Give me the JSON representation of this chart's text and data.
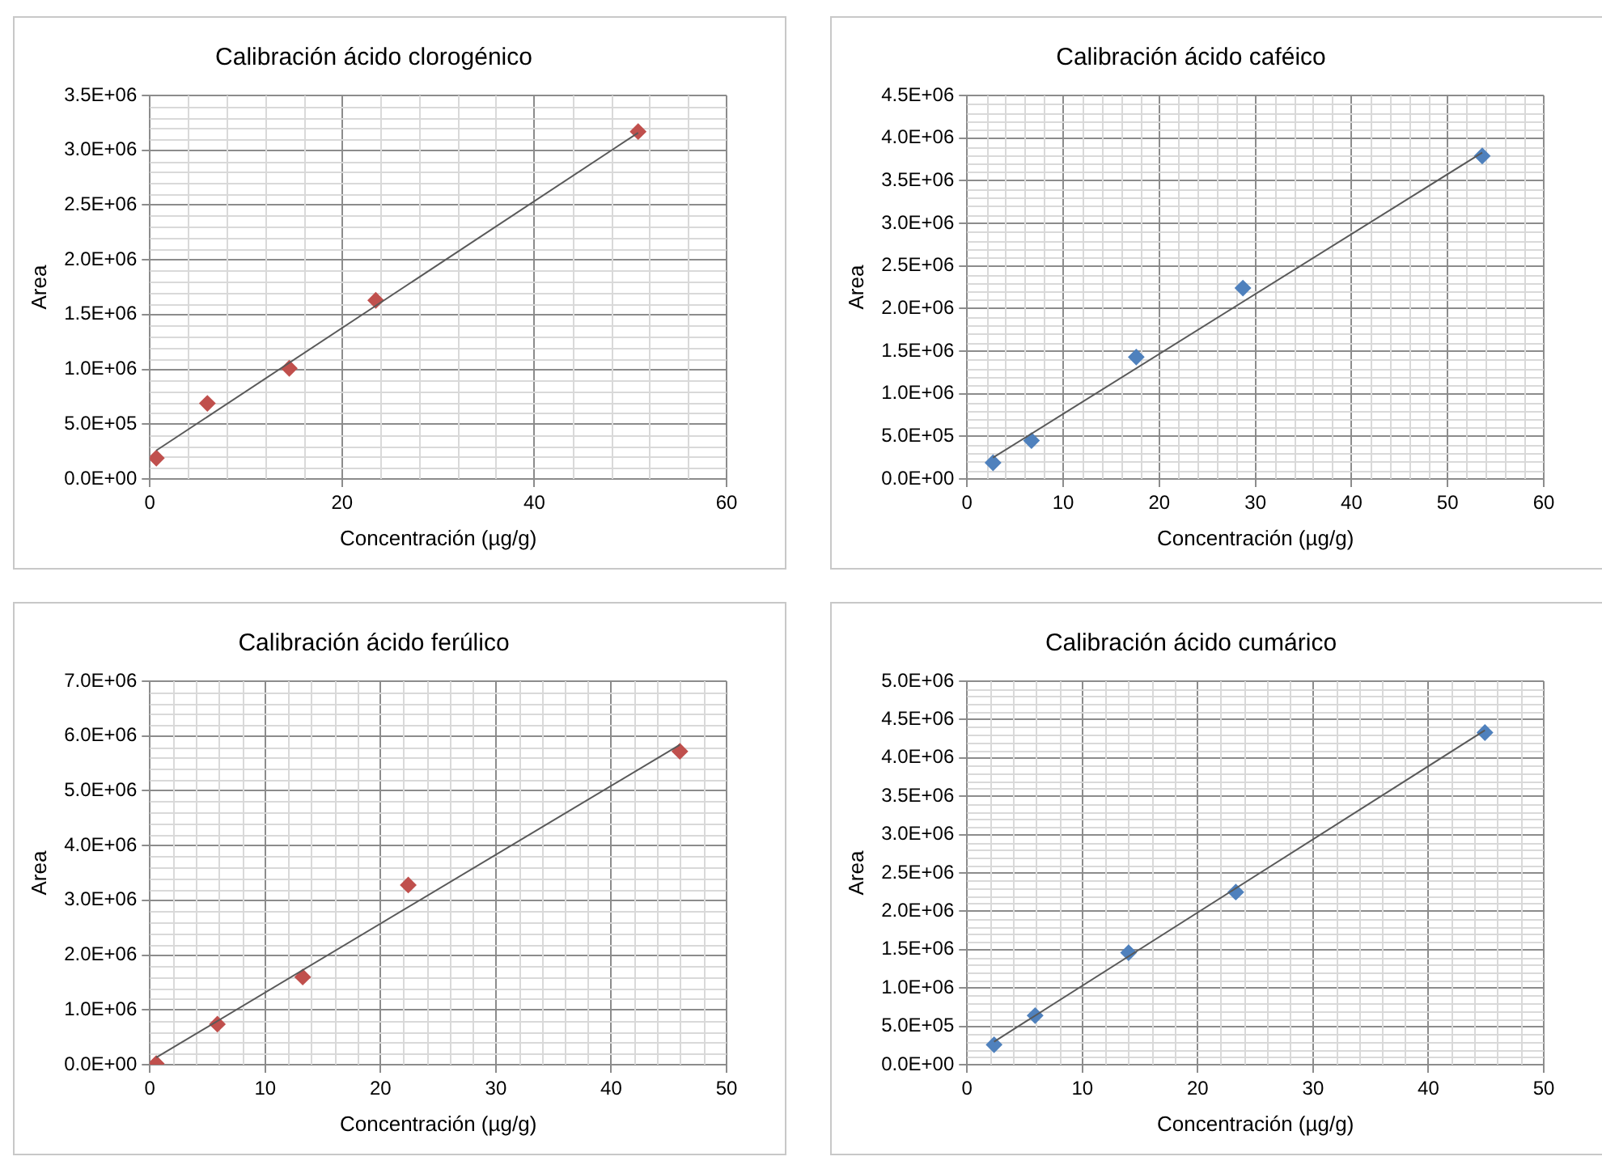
{
  "chart_data": [
    {
      "type": "scatter",
      "title": "Calibración ácido clorogénico",
      "xlabel": "Concentración (µg/g)",
      "ylabel": "Area",
      "marker": "diamond",
      "grid": true,
      "legend": false,
      "xlim": [
        0,
        60
      ],
      "xticks": [
        0,
        20,
        40,
        60
      ],
      "ylim": [
        0,
        3500000
      ],
      "yticks": [
        {
          "value": 0,
          "label": "0.0E+00"
        },
        {
          "value": 500000,
          "label": "5.0E+05"
        },
        {
          "value": 1000000,
          "label": "1.0E+06"
        },
        {
          "value": 1500000,
          "label": "1.5E+06"
        },
        {
          "value": 2000000,
          "label": "2.0E+06"
        },
        {
          "value": 2500000,
          "label": "2.5E+06"
        },
        {
          "value": 3000000,
          "label": "3.0E+06"
        },
        {
          "value": 3500000,
          "label": "3.5E+06"
        }
      ],
      "series": [
        {
          "type": "scatter",
          "color": "#c0504d",
          "x": [
            0.67,
            5.98,
            14.5,
            23.5,
            50.8
          ],
          "values": [
            190000,
            690000,
            1010000,
            1630000,
            3170000
          ]
        },
        {
          "type": "line",
          "color": "#595959",
          "marker": "none",
          "x": [
            0.67,
            50.8
          ],
          "values": [
            260000,
            3160000
          ]
        }
      ]
    },
    {
      "type": "scatter",
      "title": "Calibración ácido caféico",
      "xlabel": "Concentración (µg/g)",
      "ylabel": "Area",
      "marker": "diamond",
      "grid": true,
      "legend": false,
      "xlim": [
        0,
        60
      ],
      "xticks": [
        0,
        10,
        20,
        30,
        40,
        50,
        60
      ],
      "ylim": [
        0,
        4500000
      ],
      "yticks": [
        {
          "value": 0,
          "label": "0.0E+00"
        },
        {
          "value": 500000,
          "label": "5.0E+05"
        },
        {
          "value": 1000000,
          "label": "1.0E+06"
        },
        {
          "value": 1500000,
          "label": "1.5E+06"
        },
        {
          "value": 2000000,
          "label": "2.0E+06"
        },
        {
          "value": 2500000,
          "label": "2.5E+06"
        },
        {
          "value": 3000000,
          "label": "3.0E+06"
        },
        {
          "value": 3500000,
          "label": "3.5E+06"
        },
        {
          "value": 4000000,
          "label": "4.0E+06"
        },
        {
          "value": 4500000,
          "label": "4.5E+06"
        }
      ],
      "series": [
        {
          "type": "scatter",
          "color": "#4f81bd",
          "x": [
            2.7,
            6.7,
            17.6,
            28.7,
            53.6
          ],
          "values": [
            190000,
            450000,
            1430000,
            2240000,
            3790000
          ]
        },
        {
          "type": "line",
          "color": "#595959",
          "marker": "none",
          "x": [
            2.7,
            53.6
          ],
          "values": [
            250000,
            3830000
          ]
        }
      ]
    },
    {
      "type": "scatter",
      "title": "Calibración ácido ferúlico",
      "xlabel": "Concentración (µg/g)",
      "ylabel": "Area",
      "marker": "diamond",
      "grid": true,
      "legend": false,
      "xlim": [
        0,
        50
      ],
      "xticks": [
        0,
        10,
        20,
        30,
        40,
        50
      ],
      "ylim": [
        0,
        7000000
      ],
      "yticks": [
        {
          "value": 0,
          "label": "0.0E+00"
        },
        {
          "value": 1000000,
          "label": "1.0E+06"
        },
        {
          "value": 2000000,
          "label": "2.0E+06"
        },
        {
          "value": 3000000,
          "label": "3.0E+06"
        },
        {
          "value": 4000000,
          "label": "4.0E+06"
        },
        {
          "value": 5000000,
          "label": "5.0E+06"
        },
        {
          "value": 6000000,
          "label": "6.0E+06"
        },
        {
          "value": 7000000,
          "label": "7.0E+06"
        }
      ],
      "series": [
        {
          "type": "scatter",
          "color": "#c0504d",
          "x": [
            0.55,
            5.85,
            13.25,
            22.4,
            45.95
          ],
          "values": [
            20000,
            740000,
            1600000,
            3280000,
            5720000
          ]
        },
        {
          "type": "line",
          "color": "#595959",
          "marker": "none",
          "x": [
            0.55,
            45.95
          ],
          "values": [
            130000,
            5840000
          ]
        }
      ]
    },
    {
      "type": "scatter",
      "title": "Calibración ácido cumárico",
      "xlabel": "Concentración (µg/g)",
      "ylabel": "Area",
      "marker": "diamond",
      "grid": true,
      "legend": false,
      "xlim": [
        0,
        50
      ],
      "xticks": [
        0,
        10,
        20,
        30,
        40,
        50
      ],
      "ylim": [
        0,
        5000000
      ],
      "yticks": [
        {
          "value": 0,
          "label": "0.0E+00"
        },
        {
          "value": 500000,
          "label": "5.0E+05"
        },
        {
          "value": 1000000,
          "label": "1.0E+06"
        },
        {
          "value": 1500000,
          "label": "1.5E+06"
        },
        {
          "value": 2000000,
          "label": "2.0E+06"
        },
        {
          "value": 2500000,
          "label": "2.5E+06"
        },
        {
          "value": 3000000,
          "label": "3.0E+06"
        },
        {
          "value": 3500000,
          "label": "3.5E+06"
        },
        {
          "value": 4000000,
          "label": "4.0E+06"
        },
        {
          "value": 4500000,
          "label": "4.5E+06"
        },
        {
          "value": 5000000,
          "label": "5.0E+06"
        }
      ],
      "series": [
        {
          "type": "scatter",
          "color": "#4f81bd",
          "x": [
            2.34,
            5.9,
            14.0,
            23.3,
            44.9
          ],
          "values": [
            260000,
            640000,
            1460000,
            2250000,
            4330000
          ]
        },
        {
          "type": "line",
          "color": "#595959",
          "marker": "none",
          "x": [
            2.34,
            44.9
          ],
          "values": [
            300000,
            4360000
          ]
        }
      ]
    }
  ]
}
